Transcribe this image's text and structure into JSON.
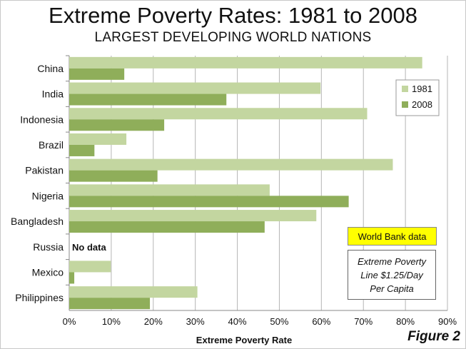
{
  "header": {
    "title": "Extreme Poverty Rates: 1981 to 2008",
    "subtitle": "LARGEST DEVELOPING WORLD NATIONS"
  },
  "chart_data": {
    "type": "bar",
    "orientation": "horizontal",
    "categories": [
      "China",
      "India",
      "Indonesia",
      "Brazil",
      "Pakistan",
      "Nigeria",
      "Bangladesh",
      "Russia",
      "Mexico",
      "Philippines"
    ],
    "series": [
      {
        "name": "1981",
        "color": "#c3d6a0",
        "values": [
          84.0,
          59.8,
          70.9,
          13.6,
          77.0,
          47.7,
          58.8,
          null,
          9.9,
          30.5
        ]
      },
      {
        "name": "2008",
        "color": "#8fae5a",
        "values": [
          13.1,
          37.4,
          22.6,
          6.0,
          21.0,
          66.5,
          46.5,
          null,
          1.2,
          19.2
        ]
      }
    ],
    "xlabel": "Extreme Poverty Rate",
    "xlim": [
      0,
      90
    ],
    "xticks": [
      "0%",
      "10%",
      "20%",
      "30%",
      "40%",
      "50%",
      "60%",
      "70%",
      "80%",
      "90%"
    ],
    "gridlines": true,
    "legend_position": "top-right",
    "annotations": {
      "no_data": "No data"
    }
  },
  "annotations": {
    "source_badge": "World Bank data",
    "note_lines": [
      "Extreme Poverty",
      "Line $1.25/Day",
      "Per Capita"
    ],
    "figure_label": "Figure 2"
  },
  "colors": {
    "grid": "#b5b5b5",
    "axis": "#888888",
    "badge": "#ffff00"
  }
}
